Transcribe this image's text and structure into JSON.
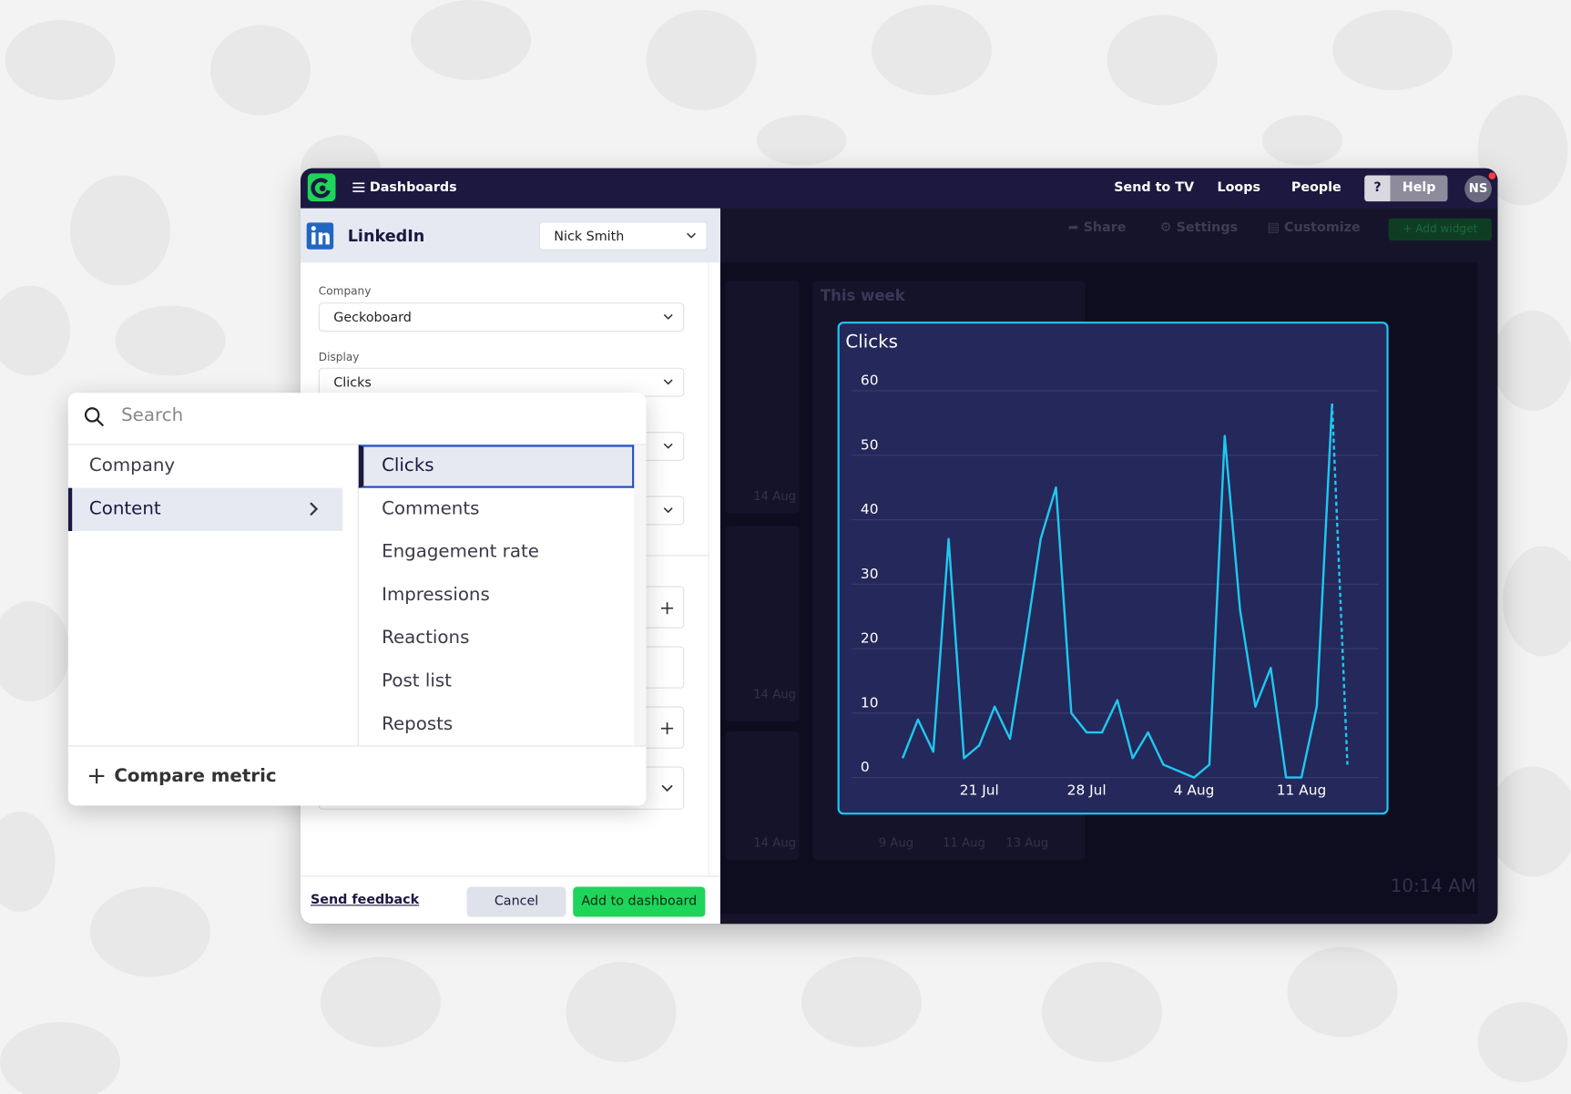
{
  "nav": {
    "brand": "Dashboards",
    "links": [
      "Send to TV",
      "Loops",
      "People"
    ],
    "help_icon": "?",
    "help": "Help",
    "avatar": "NS"
  },
  "toolbar": [
    "Share",
    "Settings",
    "Customize",
    "Add widget"
  ],
  "panel": {
    "service": "LinkedIn",
    "account": "Nick Smith",
    "fields": [
      {
        "label": "Company",
        "value": "Geckoboard"
      },
      {
        "label": "Display",
        "value": "Clicks"
      }
    ],
    "feedback": "Send feedback",
    "cancel": "Cancel",
    "submit": "Add to dashboard"
  },
  "background": {
    "widget_title": "This week",
    "dates": [
      "14 Aug",
      "14 Aug",
      "14 Aug",
      "9 Aug",
      "11 Aug",
      "13 Aug"
    ],
    "clock": "10:14 AM"
  },
  "picker": {
    "search_placeholder": "Search",
    "groups": [
      "Company",
      "Content"
    ],
    "metrics": [
      "Clicks",
      "Comments",
      "Engagement rate",
      "Impressions",
      "Reactions",
      "Post list",
      "Reposts"
    ],
    "compare": "Compare metric"
  },
  "chart_data": {
    "type": "line",
    "title": "Clicks",
    "categories": [
      null,
      null,
      null,
      null,
      null,
      "21 Jul",
      null,
      null,
      null,
      null,
      null,
      null,
      "28 Jul",
      null,
      null,
      null,
      null,
      null,
      null,
      "4 Aug",
      null,
      null,
      null,
      null,
      null,
      null,
      "11 Aug",
      null,
      null,
      null
    ],
    "values": [
      3,
      9,
      4,
      37,
      3,
      5,
      11,
      6,
      21,
      37,
      45,
      10,
      7,
      7,
      12,
      3,
      7,
      2,
      1,
      0,
      2,
      53,
      26,
      11,
      17,
      0,
      0,
      11,
      58,
      2
    ],
    "color": "#1ec8f0",
    "ylim": [
      0,
      60
    ],
    "yticks": [
      0,
      10,
      20,
      30,
      40,
      50,
      60
    ],
    "grid": true
  }
}
